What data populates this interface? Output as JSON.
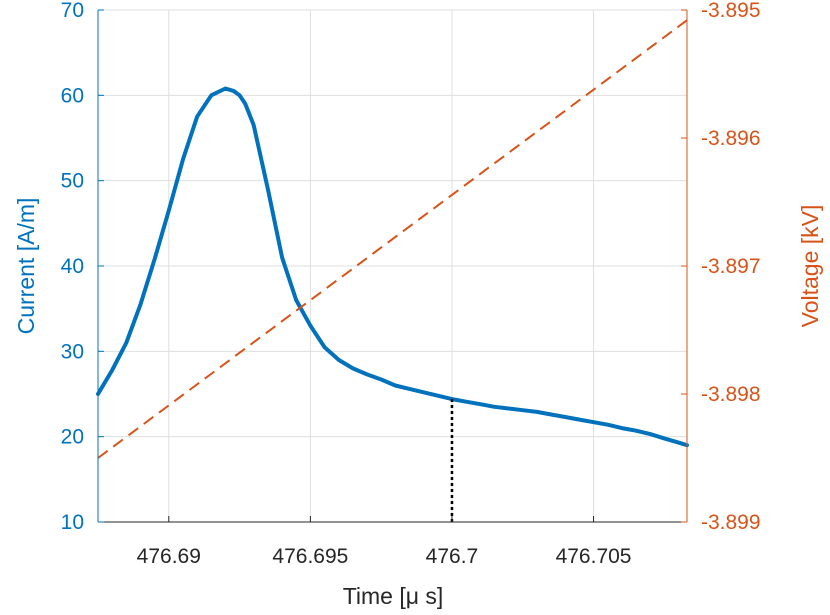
{
  "chart_data": {
    "type": "line",
    "xlabel": "Time [μ s]",
    "ylabel_left": "Current [A/m]",
    "ylabel_right": "Voltage [kV]",
    "xlim": [
      476.6875,
      476.7083
    ],
    "ylim_left": [
      10,
      70
    ],
    "ylim_right": [
      -3.899,
      -3.895
    ],
    "grid": true,
    "x_ticks": [
      476.69,
      476.695,
      476.7,
      476.705
    ],
    "x_tick_labels": [
      "476.69",
      "476.695",
      "476.7",
      "476.705"
    ],
    "y_left_ticks": [
      10,
      20,
      30,
      40,
      50,
      60,
      70
    ],
    "y_left_tick_labels": [
      "10",
      "20",
      "30",
      "40",
      "50",
      "60",
      "70"
    ],
    "y_right_ticks": [
      -3.899,
      -3.898,
      -3.897,
      -3.896,
      -3.895
    ],
    "y_right_tick_labels": [
      "-3.899",
      "-3.898",
      "-3.897",
      "-3.896",
      "-3.895"
    ],
    "series": [
      {
        "axis": "left",
        "style": "solid",
        "color": "#0072BD",
        "x": [
          476.6875,
          476.688,
          476.6885,
          476.689,
          476.6895,
          476.69,
          476.6905,
          476.691,
          476.6915,
          476.692,
          476.6923,
          476.6925,
          476.6927,
          476.693,
          476.6935,
          476.694,
          476.6945,
          476.695,
          476.6955,
          476.696,
          476.6965,
          476.697,
          476.6975,
          476.698,
          476.6985,
          476.699,
          476.6995,
          476.7,
          476.7005,
          476.701,
          476.7015,
          476.702,
          476.7025,
          476.703,
          476.7035,
          476.704,
          476.7045,
          476.705,
          476.7055,
          476.706,
          476.7065,
          476.707,
          476.7075,
          476.708,
          476.7083
        ],
        "y": [
          25.0,
          27.8,
          31.0,
          35.5,
          40.8,
          46.5,
          52.5,
          57.5,
          60.0,
          60.8,
          60.5,
          60.0,
          59.0,
          56.5,
          49.0,
          41.0,
          36.0,
          33.0,
          30.5,
          29.0,
          28.0,
          27.3,
          26.7,
          26.0,
          25.6,
          25.2,
          24.8,
          24.4,
          24.1,
          23.8,
          23.5,
          23.3,
          23.1,
          22.9,
          22.6,
          22.3,
          22.0,
          21.7,
          21.4,
          21.0,
          20.7,
          20.3,
          19.8,
          19.3,
          19.0
        ]
      },
      {
        "axis": "right",
        "style": "dashed",
        "color": "#D95319",
        "x": [
          476.6875,
          476.7083
        ],
        "y": [
          -3.8985,
          -3.89508
        ]
      }
    ],
    "annotations": [
      {
        "type": "vertical-dotted-line",
        "x": 476.7,
        "y_from": 10,
        "y_to": 24.5,
        "color": "#000000"
      }
    ]
  }
}
